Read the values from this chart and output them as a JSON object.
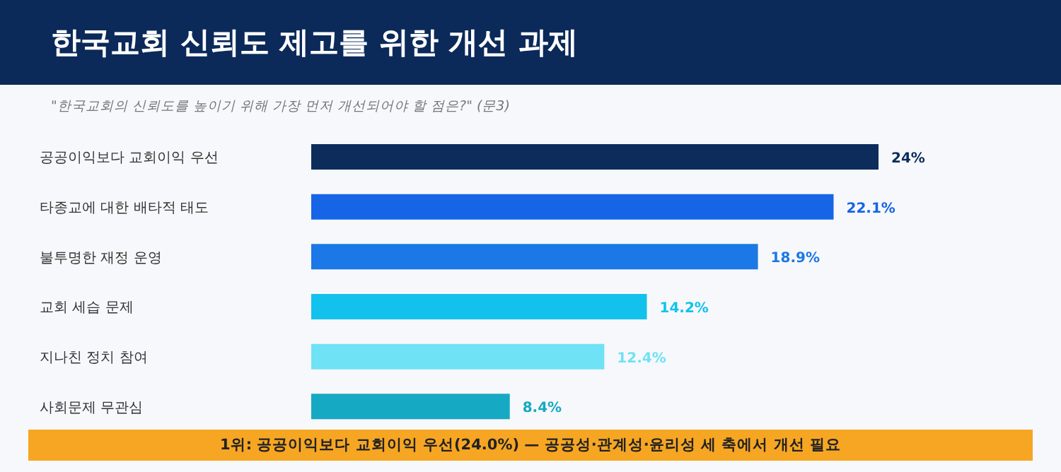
{
  "chart_data": {
    "type": "bar",
    "orientation": "horizontal",
    "title": "한국교회 신뢰도 제고를 위한 개선 과제",
    "subtitle": "\"한국교회의 신뢰도를 높이기 위해 가장 먼저 개선되어야 할 점은?\" (문3)",
    "categories": [
      "공공이익보다 교회이익 우선",
      "타종교에 대한 배타적 태도",
      "불투명한 재정 운영",
      "교회 세습 문제",
      "지나친 정치 참여",
      "사회문제 무관심"
    ],
    "values": [
      24,
      22.1,
      18.9,
      14.2,
      12.4,
      8.4
    ],
    "value_labels": [
      "24%",
      "22.1%",
      "18.9%",
      "14.2%",
      "12.4%",
      "8.4%"
    ],
    "colors": [
      "#0c2c5c",
      "#1565e6",
      "#1c78e6",
      "#12c2ec",
      "#6fe2f6",
      "#16a9c3"
    ],
    "annotations": [
      "1위: 공공이익보다 교회이익 우선(24.0%) — 공공성·관계성·윤리성 세 축에서 개선 필요"
    ],
    "tick_labels": "y"
  }
}
